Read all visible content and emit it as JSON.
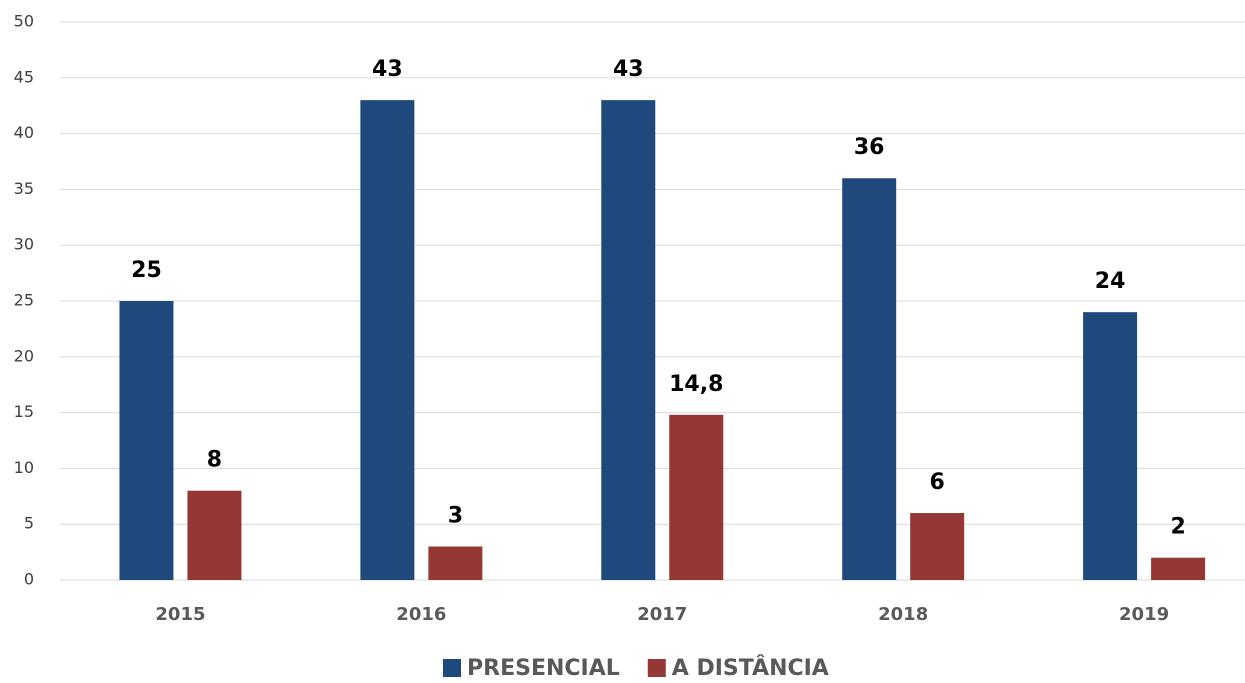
{
  "chart_data": {
    "type": "bar",
    "categories": [
      "2015",
      "2016",
      "2017",
      "2018",
      "2019"
    ],
    "series": [
      {
        "name": "PRESENCIAL",
        "color": "#1f497d",
        "values": [
          25,
          43,
          43,
          36,
          24
        ]
      },
      {
        "name": "A DISTÂNCIA",
        "color": "#953735",
        "values": [
          8,
          3,
          14.8,
          6,
          2
        ],
        "value_labels": [
          "8",
          "3",
          "14,8",
          "6",
          "2"
        ]
      }
    ],
    "ylim": [
      0,
      50
    ],
    "yticks": [
      0,
      5,
      10,
      15,
      20,
      25,
      30,
      35,
      40,
      45,
      50
    ],
    "grid": true,
    "legend": "bottom"
  }
}
